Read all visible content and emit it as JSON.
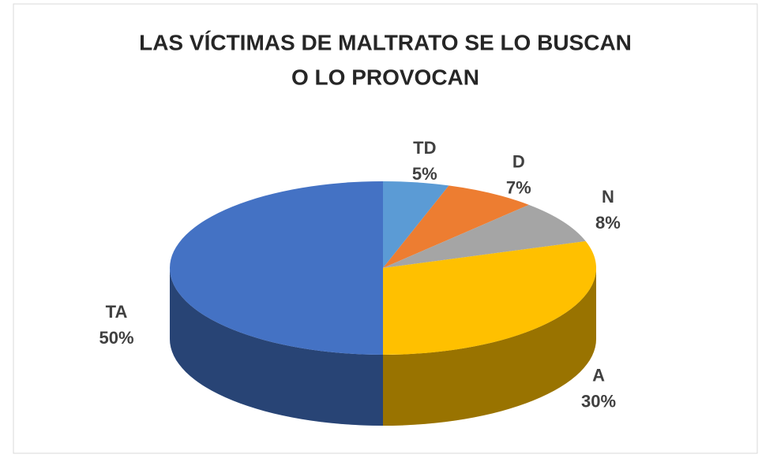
{
  "chart_data": {
    "type": "pie3d",
    "title": [
      "LAS VÍCTIMAS DE MALTRATO SE LO BUSCAN",
      "O LO PROVOCAN"
    ],
    "categories": [
      "TD",
      "D",
      "N",
      "A",
      "TA"
    ],
    "values": [
      5,
      7,
      8,
      30,
      50
    ],
    "value_labels": [
      "5%",
      "7%",
      "8%",
      "30%",
      "50%"
    ],
    "colors": [
      "#5b9bd5",
      "#ed7d31",
      "#a5a5a5",
      "#ffc000",
      "#4472c4"
    ]
  }
}
